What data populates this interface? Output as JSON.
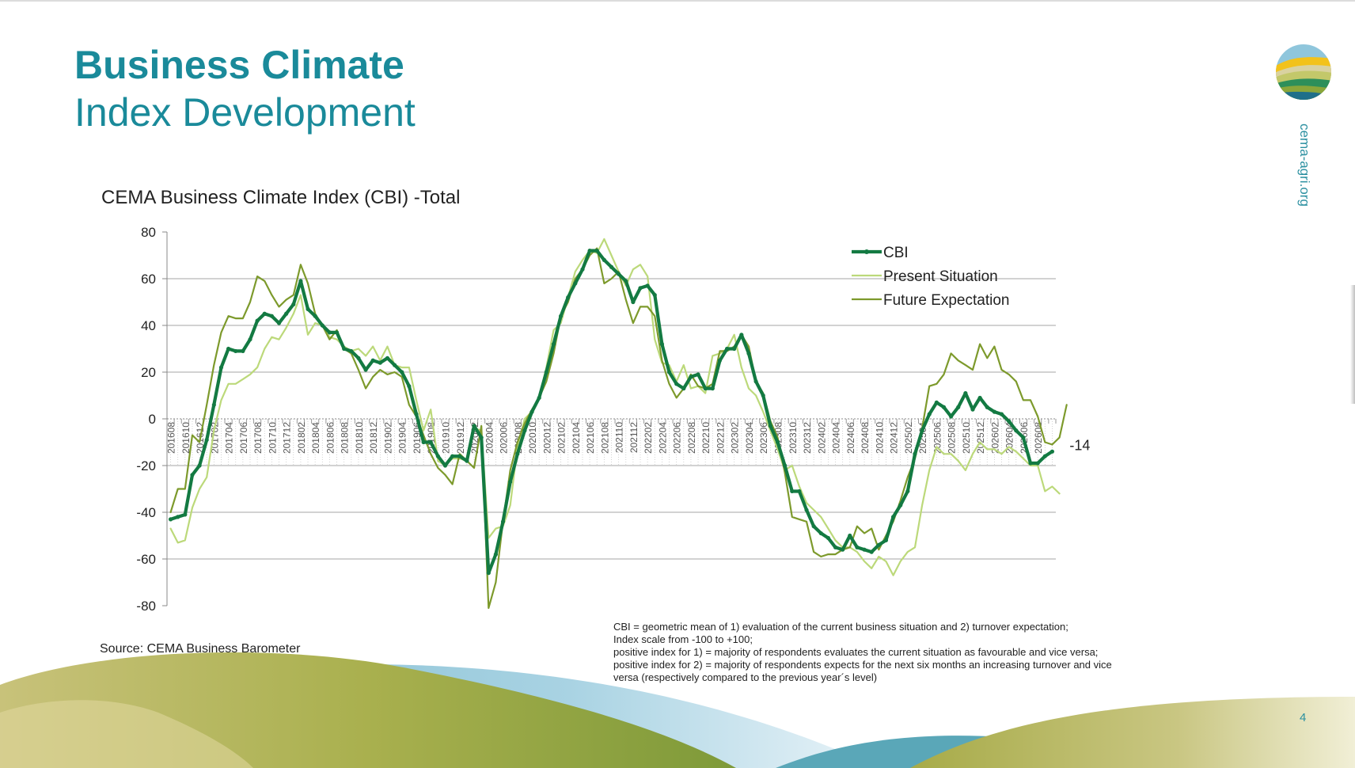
{
  "slide": {
    "title_line1": "Business Climate",
    "title_line2": "Index Development",
    "chart_title": "CEMA Business Climate Index (CBI) -Total",
    "website": "cema-agri.org",
    "source": "Source: CEMA Business Barometer",
    "notes": [
      "CBI = geometric mean of 1) evaluation of the current business situation and 2) turnover expectation;",
      "Index scale from -100 to +100;",
      "positive index for 1) = majority of respondents evaluates the current situation as favourable and vice versa;",
      "positive index for 2) = majority of respondents expects for the next six months an increasing turnover and vice",
      "versa (respectively compared to the previous year´s level)"
    ],
    "page_number": "4"
  },
  "colors": {
    "title": "#1a8a9a",
    "cbi": "#137a42",
    "present": "#bcd97a",
    "future": "#7d9a2c"
  },
  "chart_data": {
    "type": "line",
    "title": "CEMA Business Climate Index (CBI) -Total",
    "ylim": [
      -80,
      80
    ],
    "yticks": [
      -80,
      -60,
      -40,
      -20,
      0,
      20,
      40,
      60,
      80
    ],
    "grid": true,
    "legend_position": "top-right",
    "x_start": "2016-08",
    "x_end": "2026-08",
    "x_tick_labels": [
      "201608",
      "201610",
      "201612",
      "201702",
      "201704",
      "201706",
      "201708",
      "201710",
      "201712",
      "201802",
      "201804",
      "201806",
      "201808",
      "201810",
      "201812",
      "201902",
      "201904",
      "201906",
      "201908",
      "201910",
      "201912",
      "202002",
      "202004",
      "202006",
      "202008",
      "202010",
      "202012",
      "202102",
      "202104",
      "202106",
      "202108",
      "202110",
      "202112",
      "202202",
      "202204",
      "202206",
      "202208",
      "202210",
      "202212",
      "202302",
      "202304",
      "202306",
      "202308",
      "202310",
      "202312",
      "202402",
      "202404",
      "202406",
      "202408",
      "202410",
      "202412",
      "202502",
      "202504",
      "202506",
      "202508",
      "202510",
      "202512",
      "202602",
      "202604",
      "202606",
      "202608"
    ],
    "last_value_label": "-14",
    "series": [
      {
        "name": "CBI",
        "values": [
          -43,
          -42,
          -41,
          -24,
          -20,
          -9,
          6,
          22,
          30,
          29,
          29,
          34,
          42,
          45,
          44,
          41,
          45,
          49,
          59,
          47,
          44,
          40,
          37,
          37,
          30,
          29,
          26,
          21,
          25,
          24,
          26,
          23,
          20,
          14,
          2,
          -10,
          -10,
          -16,
          -20,
          -16,
          -16,
          -18,
          -3,
          -8,
          -66,
          -58,
          -44,
          -27,
          -15,
          -5,
          3,
          9,
          20,
          32,
          44,
          52,
          58,
          64,
          72,
          72,
          68,
          65,
          62,
          59,
          50,
          56,
          57,
          53,
          32,
          20,
          15,
          13,
          18,
          19,
          13,
          13,
          25,
          30,
          30,
          36,
          28,
          16,
          10,
          -3,
          -10,
          -20,
          -31,
          -31,
          -39,
          -46,
          -49,
          -51,
          -55,
          -56,
          -50,
          -55,
          -56,
          -57,
          -54,
          -52,
          -42,
          -37,
          -31,
          -15,
          -5,
          2,
          7,
          5,
          1,
          5,
          11,
          4,
          9,
          5,
          3,
          2,
          -1,
          -5,
          -8,
          -19,
          -19,
          -16,
          -14
        ]
      },
      {
        "name": "Present Situation",
        "values": [
          -47,
          -53,
          -52,
          -38,
          -30,
          -25,
          -5,
          8,
          15,
          15,
          17,
          19,
          22,
          30,
          35,
          34,
          39,
          45,
          53,
          36,
          41,
          40,
          35,
          34,
          31,
          29,
          30,
          27,
          31,
          25,
          31,
          23,
          22,
          22,
          8,
          -5,
          4,
          -18,
          -20,
          -17,
          -17,
          -18,
          -4,
          -5,
          -51,
          -47,
          -46,
          -37,
          -12,
          0,
          3,
          9,
          22,
          38,
          41,
          52,
          63,
          68,
          72,
          71,
          77,
          70,
          63,
          57,
          64,
          66,
          61,
          34,
          24,
          23,
          16,
          23,
          13,
          14,
          11,
          27,
          28,
          30,
          36,
          22,
          13,
          10,
          3,
          -5,
          -13,
          -22,
          -20,
          -29,
          -36,
          -39,
          -42,
          -47,
          -52,
          -55,
          -55,
          -57,
          -61,
          -64,
          -59,
          -61,
          -67,
          -61,
          -57,
          -55,
          -37,
          -22,
          -12,
          -15,
          -15,
          -18,
          -22,
          -15,
          -10,
          -13,
          -13,
          -15,
          -12,
          -14,
          -17,
          -20,
          -20,
          -31,
          -29,
          -32
        ]
      },
      {
        "name": "Future Expectation",
        "values": [
          -40,
          -30,
          -30,
          -7,
          -10,
          6,
          23,
          37,
          44,
          43,
          43,
          50,
          61,
          59,
          53,
          48,
          51,
          53,
          66,
          58,
          45,
          40,
          34,
          38,
          30,
          28,
          21,
          13,
          18,
          21,
          19,
          20,
          18,
          6,
          1,
          -7,
          -15,
          -21,
          -24,
          -28,
          -15,
          -18,
          -21,
          -3,
          -81,
          -70,
          -44,
          -22,
          -10,
          -2,
          4,
          9,
          16,
          28,
          44,
          50,
          60,
          64,
          70,
          73,
          58,
          60,
          63,
          51,
          41,
          48,
          48,
          44,
          25,
          15,
          9,
          13,
          19,
          14,
          13,
          15,
          29,
          29,
          31,
          36,
          31,
          16,
          11,
          -1,
          -8,
          -23,
          -42,
          -43,
          -44,
          -57,
          -59,
          -58,
          -58,
          -56,
          -55,
          -46,
          -49,
          -47,
          -56,
          -50,
          -44,
          -35,
          -25,
          -17,
          -4,
          14,
          15,
          19,
          28,
          25,
          23,
          21,
          32,
          26,
          31,
          21,
          19,
          16,
          8,
          8,
          1,
          -10,
          -11,
          -8,
          6
        ]
      }
    ]
  }
}
